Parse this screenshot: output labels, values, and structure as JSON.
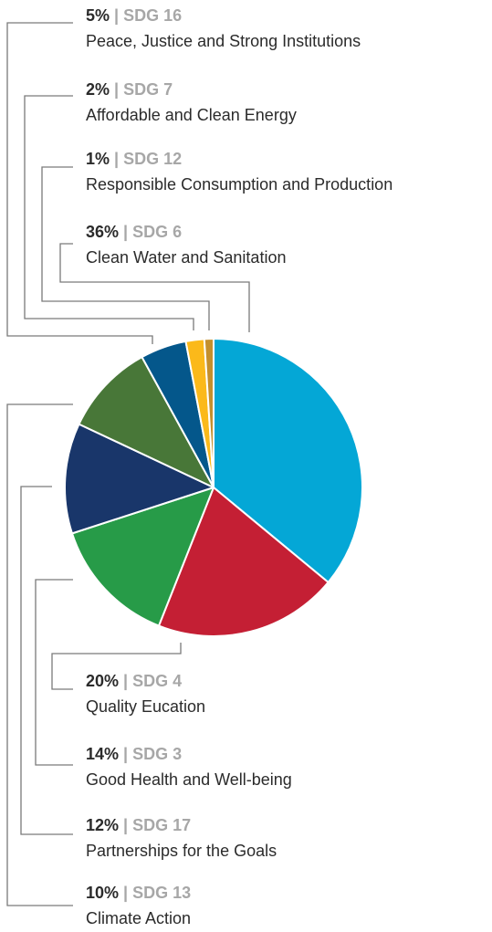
{
  "chart_data": {
    "type": "pie",
    "title": "",
    "separator": "|",
    "slices": [
      {
        "value": 36,
        "pct_label": "36%",
        "code": "SDG 6",
        "name": "Clean Water and Sanitation",
        "color": "#04a7d6"
      },
      {
        "value": 20,
        "pct_label": "20%",
        "code": "SDG 4",
        "name": "Quality Eucation",
        "color": "#c41f34"
      },
      {
        "value": 14,
        "pct_label": "14%",
        "code": "SDG 3",
        "name": "Good Health and Well-being",
        "color": "#279b48"
      },
      {
        "value": 12,
        "pct_label": "12%",
        "code": "SDG 17",
        "name": "Partnerships for the Goals",
        "color": "#19366a"
      },
      {
        "value": 10,
        "pct_label": "10%",
        "code": "SDG 13",
        "name": "Climate Action",
        "color": "#487738"
      },
      {
        "value": 5,
        "pct_label": "5%",
        "code": "SDG 16",
        "name": "Peace, Justice and Strong Institutions",
        "color": "#04578b"
      },
      {
        "value": 2,
        "pct_label": "2%",
        "code": "SDG 7",
        "name": "Affordable and Clean Energy",
        "color": "#fbb91a"
      },
      {
        "value": 1,
        "pct_label": "1%",
        "code": "SDG 12",
        "name": "Responsible Consumption and Production",
        "color": "#c48f2c"
      }
    ]
  }
}
